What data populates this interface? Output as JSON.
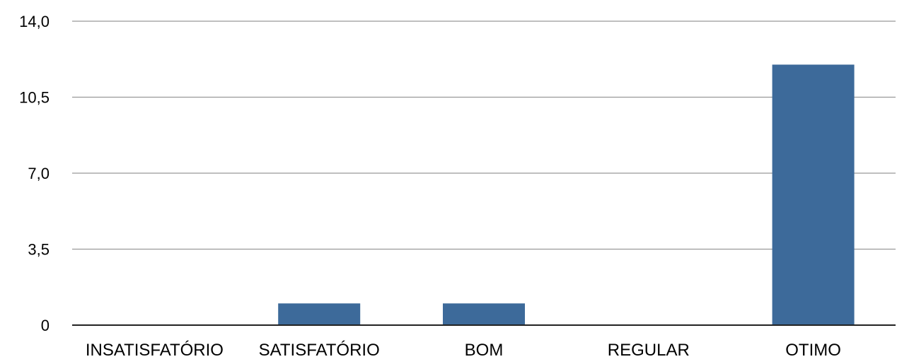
{
  "chart_data": {
    "type": "bar",
    "categories": [
      "INSATISFATÓRIO",
      "SATISFATÓRIO",
      "BOM",
      "REGULAR",
      "OTIMO"
    ],
    "values": [
      0,
      1,
      1,
      0,
      12
    ],
    "title": "",
    "xlabel": "",
    "ylabel": "",
    "ylim": [
      0,
      14
    ],
    "yticks": [
      0,
      3.5,
      7,
      10.5,
      14
    ],
    "ytick_labels": [
      "0",
      "3,5",
      "7,0",
      "10,5",
      "14,0"
    ],
    "grid": true,
    "legend": "none",
    "colors": {
      "bar": "#3d6a9a",
      "grid": "#999999",
      "axis": "#222222"
    }
  }
}
